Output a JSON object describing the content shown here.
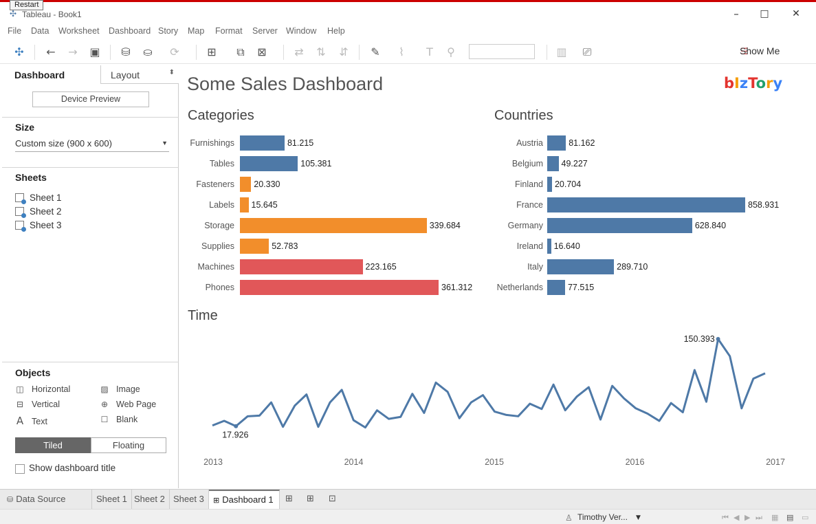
{
  "window": {
    "restart_label": "Restart",
    "title": "Tableau - Book1",
    "minimize": "–",
    "maximize": "□",
    "close": "✕"
  },
  "menu": [
    "File",
    "Data",
    "Worksheet",
    "Dashboard",
    "Story",
    "Map",
    "Format",
    "Server",
    "Window",
    "Help"
  ],
  "toolbar": {
    "show_me_label": "Show Me"
  },
  "left_pane": {
    "tab_dashboard": "Dashboard",
    "tab_layout": "Layout",
    "device_preview": "Device Preview",
    "size_header": "Size",
    "size_value": "Custom size (900 x 600)",
    "sheets_header": "Sheets",
    "sheets": [
      "Sheet 1",
      "Sheet 2",
      "Sheet 3"
    ],
    "objects_header": "Objects",
    "objects": [
      {
        "label": "Horizontal",
        "icon": "horizontal-icon"
      },
      {
        "label": "Image",
        "icon": "image-icon"
      },
      {
        "label": "Vertical",
        "icon": "vertical-icon"
      },
      {
        "label": "Web Page",
        "icon": "globe-icon"
      },
      {
        "label": "Text",
        "icon": "text-icon"
      },
      {
        "label": "Blank",
        "icon": "blank-icon"
      }
    ],
    "tiled": "Tiled",
    "floating": "Floating",
    "show_title": "Show dashboard title"
  },
  "dashboard": {
    "title": "Some Sales Dashboard",
    "logo": "bIzTory",
    "logo_colors": [
      "#e3342f",
      "#f59e0b",
      "#3b82f6",
      "#e3342f",
      "#22a06b",
      "#f59e0b",
      "#3b82f6"
    ]
  },
  "chart_data": [
    {
      "type": "bar",
      "title": "Categories",
      "categories": [
        "Furnishings",
        "Tables",
        "Fasteners",
        "Labels",
        "Storage",
        "Supplies",
        "Machines",
        "Phones"
      ],
      "values": [
        81215,
        105381,
        20330,
        15645,
        339684,
        52783,
        223165,
        361312
      ],
      "value_labels": [
        "81.215",
        "105.381",
        "20.330",
        "15.645",
        "339.684",
        "52.783",
        "223.165",
        "361.312"
      ],
      "colors": [
        "#4e79a7",
        "#4e79a7",
        "#f28e2b",
        "#f28e2b",
        "#f28e2b",
        "#f28e2b",
        "#e15759",
        "#e15759"
      ]
    },
    {
      "type": "bar",
      "title": "Countries",
      "categories": [
        "Austria",
        "Belgium",
        "Finland",
        "France",
        "Germany",
        "Ireland",
        "Italy",
        "Netherlands"
      ],
      "values": [
        81162,
        49227,
        20704,
        858931,
        628840,
        16640,
        289710,
        77515
      ],
      "value_labels": [
        "81.162",
        "49.227",
        "20.704",
        "858.931",
        "628.840",
        "16.640",
        "289.710",
        "77.515"
      ],
      "color": "#4e79a7"
    },
    {
      "type": "line",
      "title": "Time",
      "x_ticks": [
        "2013",
        "2014",
        "2015",
        "2016",
        "2017"
      ],
      "values": [
        19,
        26,
        18,
        33,
        34,
        54,
        17,
        49,
        66,
        17,
        54,
        73,
        27,
        16,
        42,
        29,
        32,
        67,
        38,
        84,
        70,
        30,
        54,
        65,
        40,
        35,
        33,
        52,
        44,
        81,
        42,
        63,
        77,
        28,
        79,
        60,
        45,
        37,
        26,
        53,
        39,
        103,
        55,
        150,
        124,
        45,
        90,
        98
      ],
      "annotations": [
        {
          "label": "150.393"
        },
        {
          "label": "17.926"
        }
      ],
      "color": "#4e79a7"
    }
  ],
  "bottom_tabs": {
    "data_source": "Data Source",
    "sheets": [
      "Sheet 1",
      "Sheet 2",
      "Sheet 3"
    ],
    "active": "Dashboard 1"
  },
  "status": {
    "user": "Timothy Ver..."
  }
}
